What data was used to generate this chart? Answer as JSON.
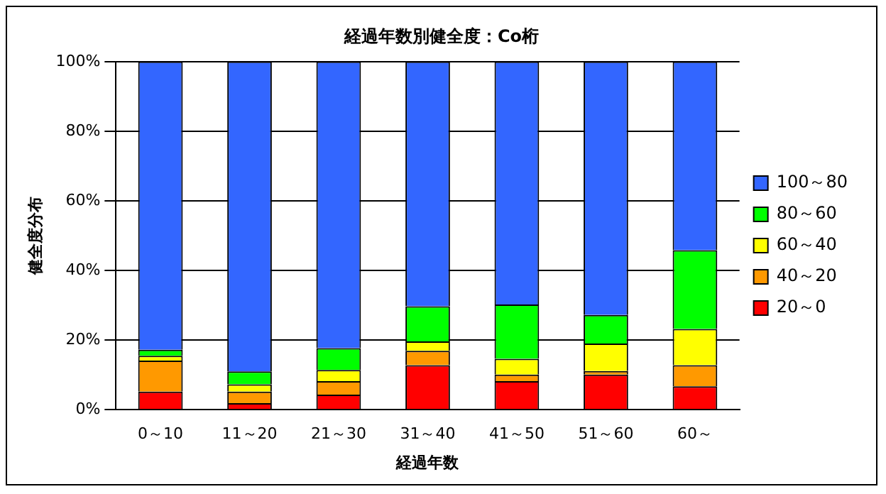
{
  "chart_data": {
    "type": "bar",
    "stacked": true,
    "title": "経過年数別健全度：Co桁",
    "xlabel": "経過年数",
    "ylabel": "健全度分布",
    "categories": [
      "0～10",
      "11～20",
      "21～30",
      "31～40",
      "41～50",
      "51～60",
      "60～"
    ],
    "series": [
      {
        "name": "20～0",
        "color": "#ff0000",
        "values": [
          5.2,
          1.9,
          4.3,
          12.8,
          8.2,
          10.1,
          6.7
        ]
      },
      {
        "name": "40～20",
        "color": "#ff9900",
        "values": [
          8.9,
          3.3,
          3.9,
          4.1,
          1.9,
          1.0,
          6.1
        ]
      },
      {
        "name": "60～40",
        "color": "#ffff00",
        "values": [
          1.4,
          2.1,
          3.2,
          2.7,
          4.5,
          7.9,
          10.4
        ]
      },
      {
        "name": "80～60",
        "color": "#00ff00",
        "values": [
          1.7,
          3.7,
          6.3,
          10.1,
          15.6,
          8.2,
          22.6
        ]
      },
      {
        "name": "100～80",
        "color": "#3366ff",
        "values": [
          82.8,
          89.0,
          82.3,
          70.3,
          69.8,
          72.8,
          54.2
        ]
      }
    ],
    "ylim": [
      0,
      100
    ],
    "yticks": [
      {
        "value": 0,
        "label": "0%"
      },
      {
        "value": 20,
        "label": "20%"
      },
      {
        "value": 40,
        "label": "40%"
      },
      {
        "value": 60,
        "label": "60%"
      },
      {
        "value": 80,
        "label": "80%"
      },
      {
        "value": 100,
        "label": "100%"
      }
    ],
    "grid": "y",
    "legend": "right"
  }
}
